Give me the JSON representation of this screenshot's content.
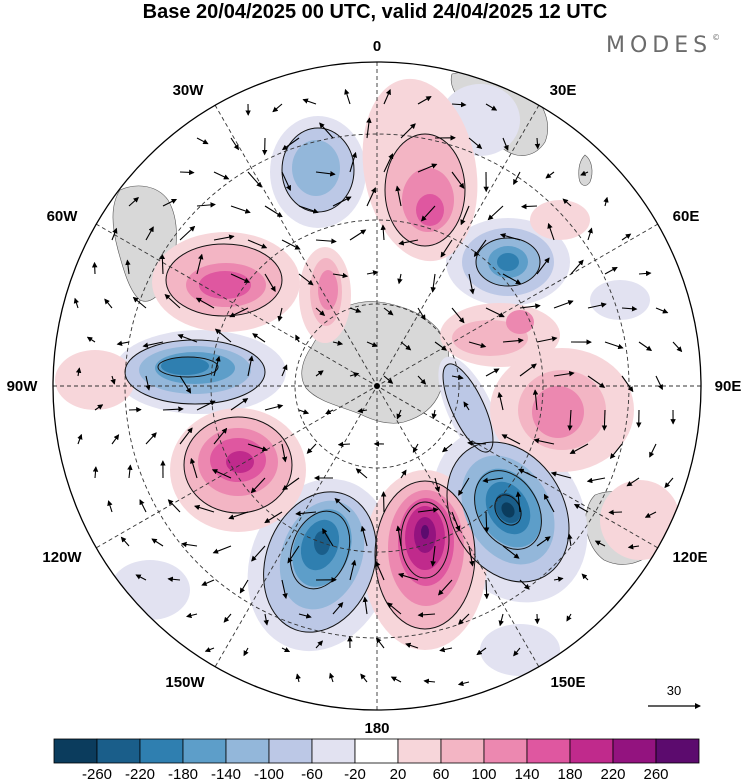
{
  "title": "Base 20/04/2025 00 UTC, valid 24/04/2025 12 UTC",
  "brand": "MODES",
  "brand_mark": "©",
  "longitude_labels": {
    "lon_0": "0",
    "lon_30e": "30E",
    "lon_60e": "60E",
    "lon_90e": "90E",
    "lon_120e": "120E",
    "lon_150e": "150E",
    "lon_180": "180",
    "lon_150w": "150W",
    "lon_120w": "120W",
    "lon_90w": "90W",
    "lon_60w": "60W",
    "lon_30w": "30W"
  },
  "vector_reference": "30",
  "colorbar": {
    "colors": [
      "#0b3c5d",
      "#1a5e8a",
      "#2f7fb0",
      "#5d9ec9",
      "#93b7da",
      "#bcc8e6",
      "#e2e2f1",
      "#ffffff",
      "#f7d6da",
      "#f3b5c4",
      "#ec88b0",
      "#df57a0",
      "#c02a8c",
      "#93137f",
      "#5c0b6e"
    ],
    "tick_labels": [
      "-260",
      "-220",
      "-180",
      "-140",
      "-100",
      "-60",
      "-20",
      "20",
      "60",
      "100",
      "140",
      "180",
      "220",
      "260"
    ]
  },
  "map_data": {
    "projection": "south polar stereographic",
    "field": "anomaly (shaded) with wind vectors",
    "anomaly_centers": [
      {
        "sign": "negative",
        "strength": "strong",
        "near": "120E-135E"
      },
      {
        "sign": "positive",
        "strength": "strong",
        "near": "170E-180"
      },
      {
        "sign": "negative",
        "strength": "strong",
        "near": "150W-160W"
      },
      {
        "sign": "positive",
        "strength": "moderate",
        "near": "110W-120W"
      },
      {
        "sign": "negative",
        "strength": "moderate",
        "near": "90W"
      },
      {
        "sign": "positive",
        "strength": "moderate",
        "near": "60W-70W"
      },
      {
        "sign": "negative",
        "strength": "moderate",
        "near": "60E"
      },
      {
        "sign": "positive",
        "strength": "moderate",
        "near": "15E-30E"
      },
      {
        "sign": "negative",
        "strength": "weak",
        "near": "15W-30W"
      },
      {
        "sign": "positive",
        "strength": "moderate",
        "near": "90E-100E"
      }
    ]
  }
}
